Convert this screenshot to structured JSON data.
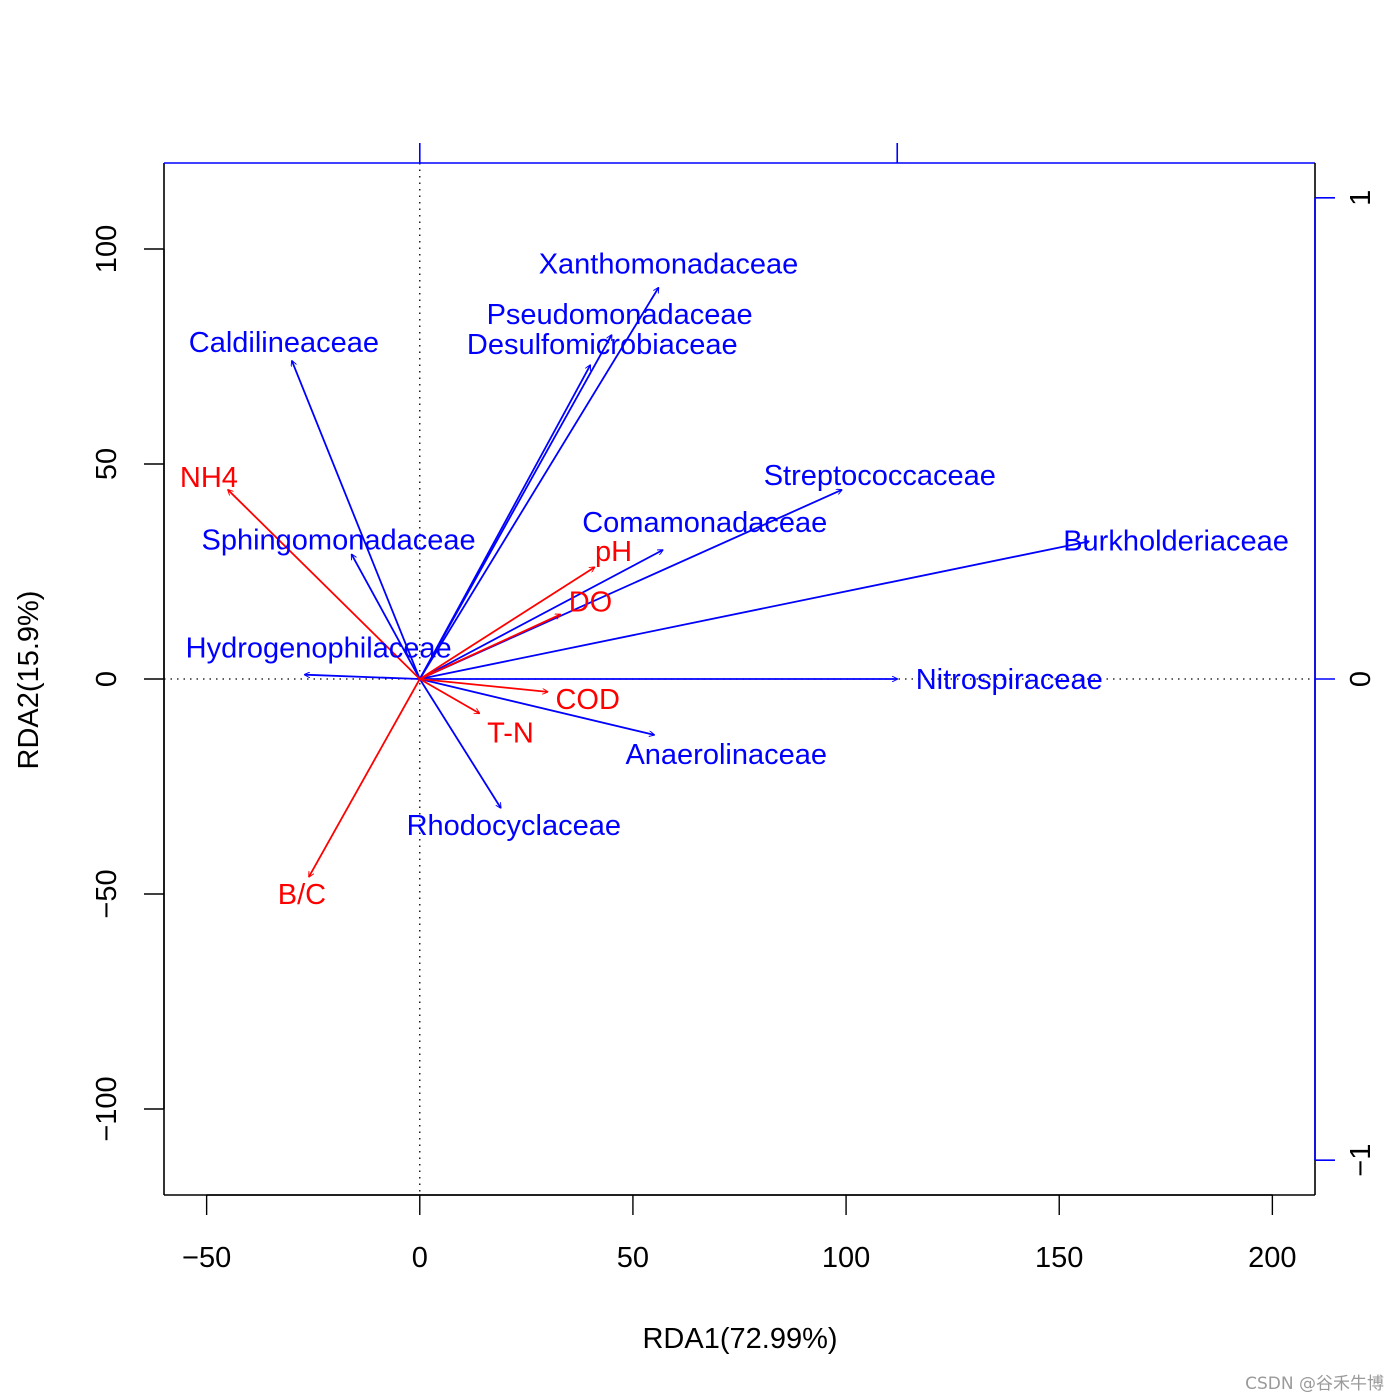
{
  "chart_data": {
    "type": "biplot",
    "title": "",
    "xlabel": "RDA1(72.99%)",
    "ylabel": "RDA2(15.9%)",
    "xlim": [
      -60,
      210
    ],
    "ylim": [
      -120,
      120
    ],
    "x_ticks": [
      -50,
      0,
      50,
      100,
      150,
      200
    ],
    "y_ticks": [
      -100,
      -50,
      0,
      50,
      100
    ],
    "x_tick_labels": [
      "−50",
      "0",
      "50",
      "100",
      "150",
      "200"
    ],
    "y_tick_labels": [
      "−100",
      "−50",
      "0",
      "50",
      "100"
    ],
    "secondary_axes": {
      "top_ticks": [
        0,
        112
      ],
      "right_ticks": [
        111.9,
        0,
        -111.9
      ],
      "right_tick_labels": [
        "1",
        "0",
        "−1"
      ],
      "color": "#0000ff"
    },
    "reference_lines": {
      "x": 0,
      "y": 0,
      "style": "dotted"
    },
    "environmental_factors": {
      "color": "#ff0000",
      "items": [
        {
          "name": "NH4",
          "x": -45,
          "y": 44
        },
        {
          "name": "pH",
          "x": 41,
          "y": 26
        },
        {
          "name": "DO",
          "x": 33,
          "y": 15
        },
        {
          "name": "COD",
          "x": 30,
          "y": -3
        },
        {
          "name": "T-N",
          "x": 14,
          "y": -8
        },
        {
          "name": "B/C",
          "x": -26,
          "y": -46
        }
      ]
    },
    "species": {
      "color": "#0000ff",
      "items": [
        {
          "name": "Xanthomonadaceae",
          "x": 56,
          "y": 91
        },
        {
          "name": "Pseudomonadaceae",
          "x": 45,
          "y": 80
        },
        {
          "name": "Desulfomicrobiaceae",
          "x": 40,
          "y": 73
        },
        {
          "name": "Caldilineaceae",
          "x": -30,
          "y": 74
        },
        {
          "name": "Streptococcaceae",
          "x": 99,
          "y": 44
        },
        {
          "name": "Burkholderiaceae",
          "x": 157,
          "y": 32
        },
        {
          "name": "Comamonadaceae",
          "x": 57,
          "y": 30
        },
        {
          "name": "Sphingomonadaceae",
          "x": -16,
          "y": 29
        },
        {
          "name": "Hydrogenophilaceae",
          "x": -27,
          "y": 1
        },
        {
          "name": "Nitrospiraceae",
          "x": 112,
          "y": 0
        },
        {
          "name": "Anaerolinaceae",
          "x": 55,
          "y": -13
        },
        {
          "name": "Rhodocyclaceae",
          "x": 19,
          "y": -30
        }
      ]
    }
  },
  "watermark": "CSDN @谷禾牛博"
}
